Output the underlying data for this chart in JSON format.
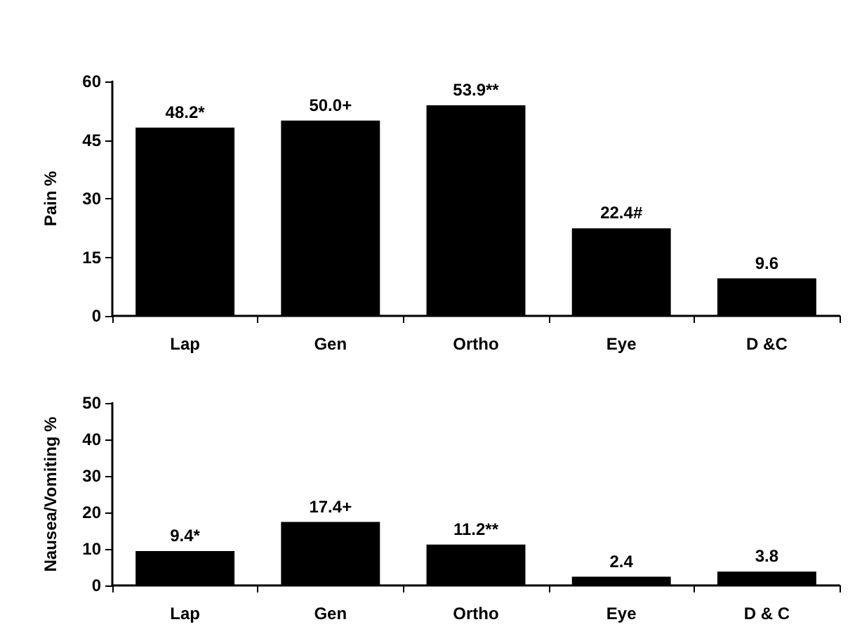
{
  "chart_data": [
    {
      "type": "bar",
      "ylabel": "Pain %",
      "categories": [
        "Lap",
        "Gen",
        "Ortho",
        "Eye",
        "D &C"
      ],
      "color": "#000000",
      "ylim": [
        0,
        60
      ],
      "yticks": [
        0,
        15,
        30,
        45,
        60
      ],
      "grid": false,
      "values": [
        48.2,
        50.0,
        53.9,
        22.4,
        9.6
      ],
      "value_labels": [
        "48.2*",
        "50.0+",
        "53.9**",
        "22.4#",
        "9.6"
      ]
    },
    {
      "type": "bar",
      "ylabel": "Nausea/Vomiting %",
      "categories": [
        "Lap",
        "Gen",
        "Ortho",
        "Eye",
        "D & C"
      ],
      "color": "#000000",
      "ylim": [
        0,
        50
      ],
      "yticks": [
        0,
        10,
        20,
        30,
        40,
        50
      ],
      "grid": false,
      "values": [
        9.4,
        17.4,
        11.2,
        2.4,
        3.8
      ],
      "value_labels": [
        "9.4*",
        "17.4+",
        "11.2**",
        "2.4",
        "3.8"
      ]
    }
  ]
}
